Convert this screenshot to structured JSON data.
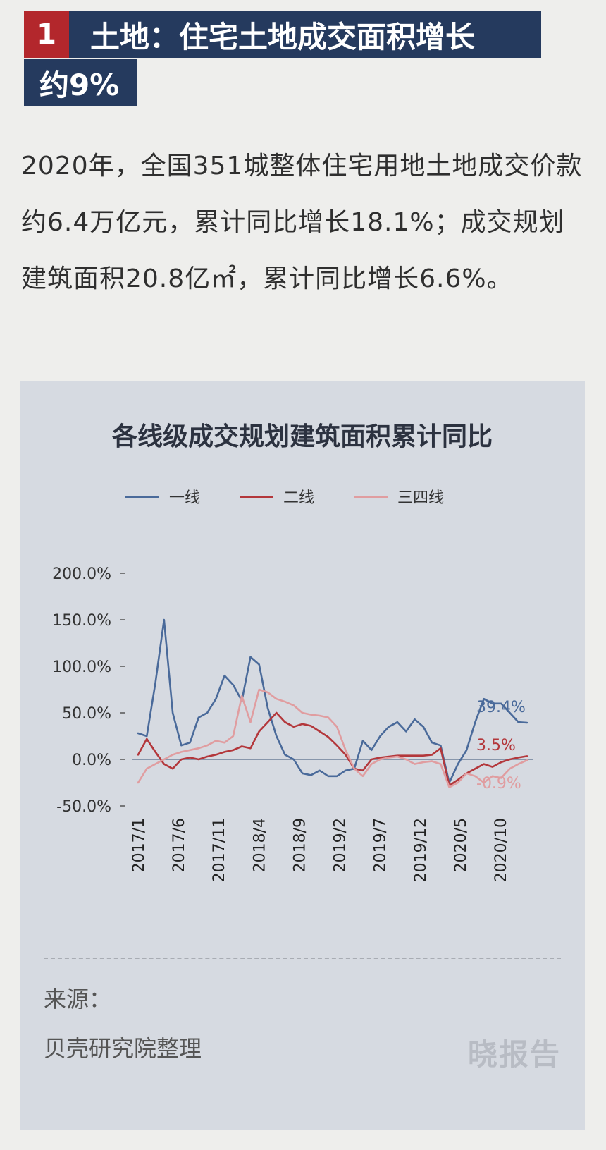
{
  "header": {
    "number": "1",
    "title_line1": "土地：住宅土地成交面积增长",
    "title_line2": "约9%"
  },
  "body": {
    "paragraph": "2020年，全国351城整体住宅用地土地成交价款约6.4万亿元，累计同比增长18.1%；成交规划建筑面积20.8亿㎡，累计同比增长6.6%。"
  },
  "chart_data": {
    "type": "line",
    "title": "各线级成交规划建筑面积累计同比",
    "ylim": [
      -50,
      200
    ],
    "y_ticks": [
      200,
      150,
      100,
      50,
      0,
      -50
    ],
    "y_tick_labels": [
      "200.0%",
      "150.0%",
      "100.0%",
      "50.0%",
      "0.0%",
      "-50.0%"
    ],
    "x_tick_labels": [
      "2017/1",
      "2017/6",
      "2017/11",
      "2018/4",
      "2018/9",
      "2019/2",
      "2019/7",
      "2019/12",
      "2020/5",
      "2020/10"
    ],
    "x_start": "2017/1",
    "x_end": "2020/12",
    "legend_position": "top",
    "grid": false,
    "series": [
      {
        "name": "一线",
        "color": "#4a6a9a",
        "end_label": "39.4%",
        "values": [
          28,
          25,
          82,
          150,
          50,
          15,
          18,
          45,
          50,
          65,
          90,
          80,
          63,
          110,
          102,
          55,
          25,
          5,
          0,
          -15,
          -17,
          -12,
          -18,
          -18,
          -12,
          -10,
          20,
          10,
          25,
          35,
          40,
          30,
          43,
          35,
          18,
          15,
          -25,
          -5,
          10,
          40,
          65,
          60,
          60,
          50,
          40,
          39.4
        ]
      },
      {
        "name": "二线",
        "color": "#b3373b",
        "end_label": "3.5%",
        "values": [
          5,
          22,
          8,
          -5,
          -10,
          0,
          2,
          0,
          3,
          5,
          8,
          10,
          14,
          12,
          30,
          40,
          50,
          40,
          35,
          38,
          36,
          30,
          24,
          15,
          5,
          -10,
          -12,
          0,
          2,
          3,
          4,
          4,
          4,
          4,
          5,
          12,
          -28,
          -22,
          -15,
          -10,
          -5,
          -8,
          -3,
          0,
          2,
          3.5
        ]
      },
      {
        "name": "三四线",
        "color": "#e09da0",
        "end_label": "-0.9%",
        "values": [
          -25,
          -10,
          -5,
          0,
          5,
          8,
          10,
          12,
          15,
          20,
          18,
          25,
          68,
          40,
          75,
          72,
          65,
          62,
          58,
          50,
          48,
          47,
          45,
          35,
          10,
          -10,
          -18,
          -5,
          0,
          2,
          3,
          0,
          -5,
          -3,
          -2,
          -5,
          -30,
          -25,
          -15,
          -18,
          -25,
          -18,
          -20,
          -10,
          -5,
          -0.9
        ]
      }
    ]
  },
  "source": {
    "label": "来源：",
    "text": "贝壳研究院整理"
  },
  "watermark": "晓报告"
}
